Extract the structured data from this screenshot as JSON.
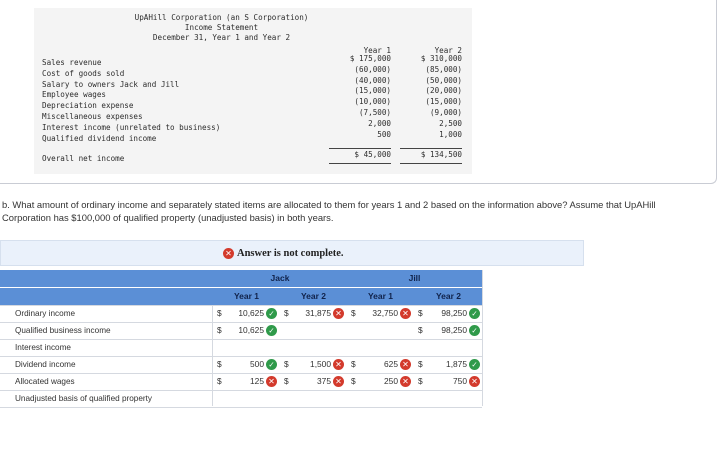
{
  "statement": {
    "company": "UpAHill Corporation (an S Corporation)",
    "title": "Income Statement",
    "date": "December 31, Year 1 and Year 2",
    "col1": "Year 1",
    "col2": "Year 2",
    "rows": [
      {
        "label": "Sales revenue",
        "y1": "$ 175,000",
        "y2": "$ 310,000"
      },
      {
        "label": "Cost of goods sold",
        "y1": "(60,000)",
        "y2": "(85,000)"
      },
      {
        "label": "Salary to owners Jack and Jill",
        "y1": "(40,000)",
        "y2": "(50,000)"
      },
      {
        "label": "Employee wages",
        "y1": "(15,000)",
        "y2": "(20,000)"
      },
      {
        "label": "Depreciation expense",
        "y1": "(10,000)",
        "y2": "(15,000)"
      },
      {
        "label": "Miscellaneous expenses",
        "y1": "(7,500)",
        "y2": "(9,000)"
      },
      {
        "label": "Interest income (unrelated to business)",
        "y1": "2,000",
        "y2": "2,500"
      },
      {
        "label": "Qualified dividend income",
        "y1": "500",
        "y2": "1,000"
      }
    ],
    "net": {
      "label": "Overall net income",
      "y1": "$ 45,000",
      "y2": "$ 134,500"
    }
  },
  "question": "b. What amount of ordinary income and separately stated items are allocated to them for years 1 and 2 based on the information above? Assume that UpAHill Corporation has $100,000 of qualified property (unadjusted basis) in both years.",
  "banner": {
    "text": "Answer is not complete.",
    "icon": "x-circle-icon"
  },
  "table": {
    "groups": [
      "Jack",
      "Jill"
    ],
    "subcols": [
      "Year 1",
      "Year 2",
      "Year 1",
      "Year 2"
    ],
    "rows": [
      {
        "label": "Ordinary income",
        "cells": [
          {
            "dollar": "$",
            "value": "10,625",
            "status": "correct"
          },
          {
            "dollar": "$",
            "value": "31,875",
            "status": "incorrect"
          },
          {
            "dollar": "$",
            "value": "32,750",
            "status": "incorrect"
          },
          {
            "dollar": "$",
            "value": "98,250",
            "status": "correct"
          }
        ]
      },
      {
        "label": "Qualified business income",
        "cells": [
          {
            "dollar": "$",
            "value": "10,625",
            "status": "correct"
          },
          {
            "dollar": "",
            "value": "",
            "status": "none"
          },
          {
            "dollar": "",
            "value": "",
            "status": "none"
          },
          {
            "dollar": "$",
            "value": "98,250",
            "status": "correct"
          }
        ]
      },
      {
        "label": "Interest income",
        "cells": [
          {
            "dollar": "",
            "value": "",
            "status": "none"
          },
          {
            "dollar": "",
            "value": "",
            "status": "none"
          },
          {
            "dollar": "",
            "value": "",
            "status": "none"
          },
          {
            "dollar": "",
            "value": "",
            "status": "none"
          }
        ]
      },
      {
        "label": "Dividend income",
        "cells": [
          {
            "dollar": "$",
            "value": "500",
            "status": "correct"
          },
          {
            "dollar": "$",
            "value": "1,500",
            "status": "incorrect"
          },
          {
            "dollar": "$",
            "value": "625",
            "status": "incorrect"
          },
          {
            "dollar": "$",
            "value": "1,875",
            "status": "correct"
          }
        ]
      },
      {
        "label": "Allocated wages",
        "cells": [
          {
            "dollar": "$",
            "value": "125",
            "status": "incorrect"
          },
          {
            "dollar": "$",
            "value": "375",
            "status": "incorrect"
          },
          {
            "dollar": "$",
            "value": "250",
            "status": "incorrect"
          },
          {
            "dollar": "$",
            "value": "750",
            "status": "incorrect"
          }
        ]
      },
      {
        "label": "Unadjusted basis of qualified property",
        "cells": [
          {
            "dollar": "",
            "value": "",
            "status": "none"
          },
          {
            "dollar": "",
            "value": "",
            "status": "none"
          },
          {
            "dollar": "",
            "value": "",
            "status": "none"
          },
          {
            "dollar": "",
            "value": "",
            "status": "none"
          }
        ]
      }
    ]
  },
  "colors": {
    "header": "#5b8fd6",
    "correct": "#2f9a4a",
    "incorrect": "#d33a2c",
    "banner": "#eaf1fb"
  }
}
